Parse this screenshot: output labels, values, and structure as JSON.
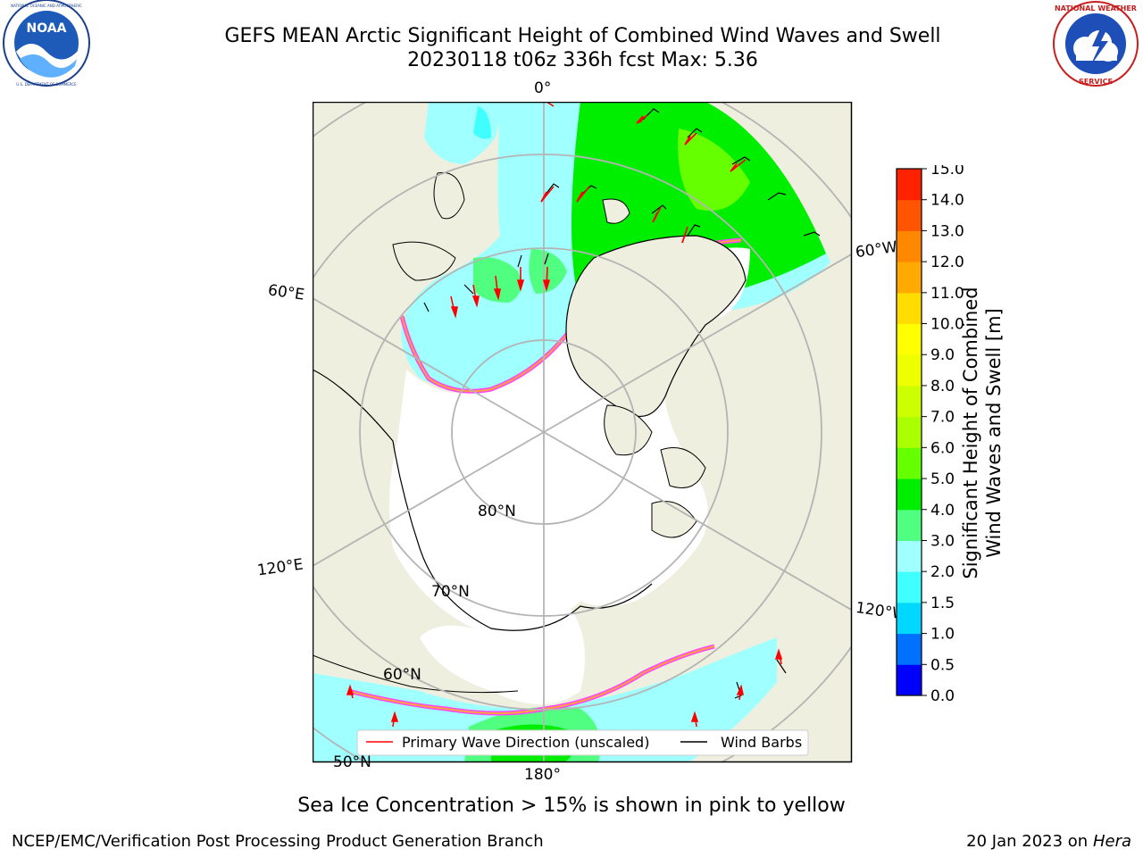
{
  "header": {
    "title_line1": "GEFS MEAN Arctic Significant Height of Combined Wind Waves and Swell",
    "title_line2": "20230118 t06z 336h fcst   Max: 5.36"
  },
  "logos": {
    "left": {
      "name": "noaa-logo",
      "text": "NOAA",
      "ring_text": "NATIONAL OCEANIC AND ATMOSPHERIC ADMINISTRATION · U.S. DEPARTMENT OF COMMERCE"
    },
    "right": {
      "name": "nws-logo",
      "ring_text": "NATIONAL WEATHER SERVICE"
    }
  },
  "map": {
    "projection": "north polar stereographic",
    "colors": {
      "land": "#efefdf",
      "ice": "#ffffff",
      "coast": "#000000",
      "grid": "#b4b4b4",
      "ice_edge": [
        "#ff44ff",
        "#ffa040",
        "#ffe060"
      ]
    },
    "longitude_labels": {
      "top": "0°",
      "left_upper": "60°E",
      "right_upper": "60°W",
      "left_lower": "120°E",
      "right_lower": "120°W",
      "bottom": "180°"
    },
    "latitude_labels": {
      "inner": "80°N",
      "mid": "70°N",
      "outer": "60°N",
      "edge": "50°N"
    },
    "legend": {
      "wave_direction": "Primary Wave Direction (unscaled)",
      "wind_barbs": "Wind Barbs"
    }
  },
  "colorbar": {
    "label_line1": "Significant Height of Combined",
    "label_line2": "Wind Waves and Swell [m]",
    "ticks": [
      "0.0",
      "0.5",
      "1.0",
      "1.5",
      "2.0",
      "3.0",
      "4.0",
      "5.0",
      "6.0",
      "7.0",
      "8.0",
      "9.0",
      "10.0",
      "11.0",
      "12.0",
      "13.0",
      "14.0",
      "15.0"
    ],
    "colors": [
      "#0000ff",
      "#0070ff",
      "#00d8ff",
      "#40ffff",
      "#a0ffff",
      "#50ff80",
      "#00ee00",
      "#66ff00",
      "#aaff00",
      "#ccff00",
      "#eeff00",
      "#ffff00",
      "#ffdd00",
      "#ffaa00",
      "#ff8800",
      "#ff5500",
      "#ff2200"
    ]
  },
  "caption": "Sea Ice Concentration > 15% is shown in pink to yellow",
  "footer": {
    "left": "NCEP/EMC/Verification Post Processing Product Generation Branch",
    "right_date": "20 Jan 2023 on ",
    "right_machine": "Hera"
  }
}
